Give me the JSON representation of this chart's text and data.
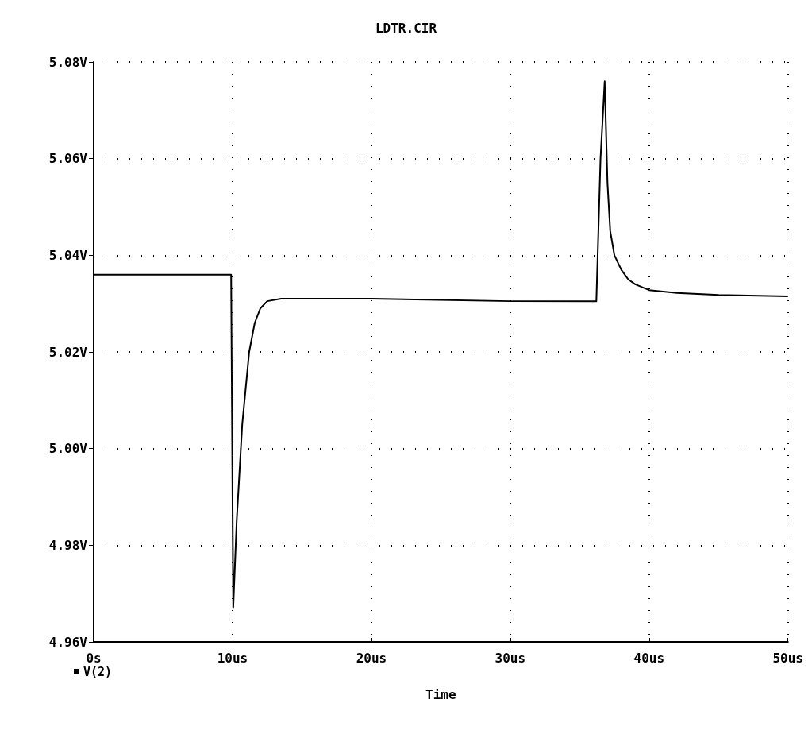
{
  "chart_data": {
    "type": "line",
    "title": "LDTR.CIR",
    "xlabel": "Time",
    "x": [
      0,
      9.9,
      10.05,
      10.3,
      10.7,
      11.2,
      11.6,
      12.0,
      12.5,
      13.5,
      20,
      30,
      36.2,
      36.5,
      36.8,
      37.0,
      37.2,
      37.5,
      38,
      38.5,
      39,
      40,
      42,
      45,
      50
    ],
    "series": [
      {
        "name": "V(2)",
        "color": "#000000",
        "values": [
          5.036,
          5.036,
          4.967,
          4.985,
          5.005,
          5.02,
          5.026,
          5.029,
          5.0305,
          5.031,
          5.031,
          5.0305,
          5.0305,
          5.06,
          5.076,
          5.055,
          5.045,
          5.04,
          5.037,
          5.035,
          5.034,
          5.0328,
          5.0322,
          5.0318,
          5.0315
        ]
      }
    ],
    "xlim": [
      0,
      50
    ],
    "ylim": [
      4.96,
      5.08
    ],
    "xticks": [
      {
        "value": 0,
        "label": "0s"
      },
      {
        "value": 10,
        "label": "10us"
      },
      {
        "value": 20,
        "label": "20us"
      },
      {
        "value": 30,
        "label": "30us"
      },
      {
        "value": 40,
        "label": "40us"
      },
      {
        "value": 50,
        "label": "50us"
      }
    ],
    "yticks": [
      {
        "value": 4.96,
        "label": "4.96V"
      },
      {
        "value": 4.98,
        "label": "4.98V"
      },
      {
        "value": 5.0,
        "label": "5.00V"
      },
      {
        "value": 5.02,
        "label": "5.02V"
      },
      {
        "value": 5.04,
        "label": "5.04V"
      },
      {
        "value": 5.06,
        "label": "5.06V"
      },
      {
        "value": 5.08,
        "label": "5.08V"
      }
    ],
    "grid": true,
    "line_style": "solid",
    "legend": "bottom left"
  }
}
